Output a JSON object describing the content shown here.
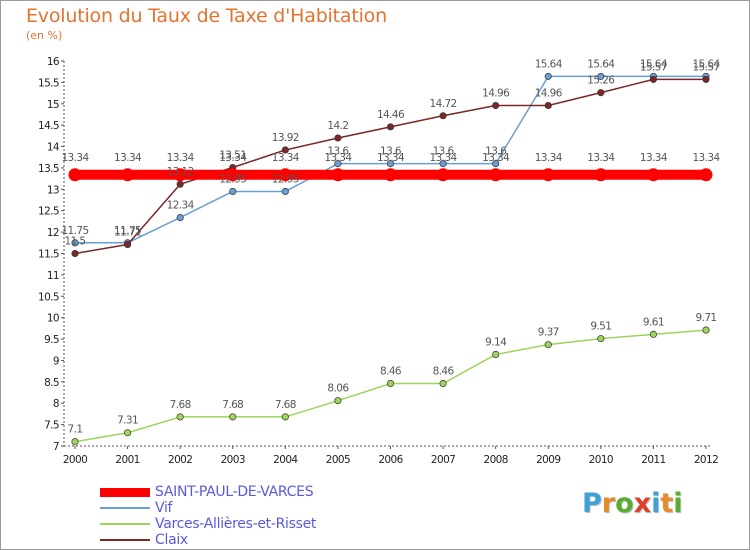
{
  "header": {
    "title": "Evolution du Taux de Taxe d'Habitation",
    "subtitle": "(en %)"
  },
  "logo": {
    "letters": [
      "P",
      "r",
      "o",
      "x",
      "i",
      "t",
      "i"
    ],
    "colors": [
      "#3fa0d8",
      "#e88a2a",
      "#5aab32",
      "#e03e2d",
      "#3fa0d8",
      "#e88a2a",
      "#5aab32"
    ]
  },
  "chart_data": {
    "type": "line",
    "title": "Evolution du Taux de Taxe d'Habitation",
    "ylabel": "(en %)",
    "xlabel": "",
    "x": [
      "2000",
      "2001",
      "2002",
      "2003",
      "2004",
      "2005",
      "2006",
      "2007",
      "2008",
      "2009",
      "2010",
      "2011",
      "2012"
    ],
    "ylim": [
      7,
      16
    ],
    "yticks": [
      "7",
      "7.5",
      "8",
      "8.5",
      "9",
      "9.5",
      "10",
      "10.5",
      "11",
      "11.5",
      "12",
      "12.5",
      "13",
      "13.5",
      "14",
      "14.5",
      "15",
      "15.5",
      "16"
    ],
    "grid": false,
    "legend_position": "bottom-left",
    "series": [
      {
        "name": "SAINT-PAUL-DE-VARCES",
        "color": "#ff0000",
        "values": [
          13.34,
          13.34,
          13.34,
          13.34,
          13.34,
          13.34,
          13.34,
          13.34,
          13.34,
          13.34,
          13.34,
          13.34,
          13.34
        ],
        "labels": [
          "13.34",
          "13.34",
          "13.34",
          "13.34",
          "13.34",
          "13.34",
          "13.34",
          "13.34",
          "13.34",
          "13.34",
          "13.34",
          "13.34",
          "13.34"
        ]
      },
      {
        "name": "Vif",
        "color": "#6a9fd4",
        "values": [
          11.75,
          11.75,
          12.34,
          12.95,
          12.95,
          13.6,
          13.6,
          13.6,
          13.6,
          15.64,
          15.64,
          15.64,
          15.64
        ],
        "labels": [
          "11.75",
          "11.75",
          "12.34",
          "12.95",
          "12.95",
          "13.6",
          "13.6",
          "13.6",
          "13.6",
          "15.64",
          "15.64",
          "15.64",
          "15.64"
        ]
      },
      {
        "name": "Varces-Allières-et-Risset",
        "color": "#9ed35c",
        "values": [
          7.1,
          7.31,
          7.68,
          7.68,
          7.68,
          8.06,
          8.46,
          8.46,
          9.14,
          9.37,
          9.51,
          9.61,
          9.71
        ],
        "labels": [
          "7.1",
          "7.31",
          "7.68",
          "7.68",
          "7.68",
          "8.06",
          "8.46",
          "8.46",
          "9.14",
          "9.37",
          "9.51",
          "9.61",
          "9.71"
        ]
      },
      {
        "name": "Claix",
        "color": "#7a2828",
        "values": [
          11.5,
          11.71,
          13.12,
          13.51,
          13.92,
          14.2,
          14.46,
          14.72,
          14.96,
          14.96,
          15.26,
          15.57,
          15.57
        ],
        "labels": [
          "11.5",
          "11.71",
          "13.12",
          "13.51",
          "13.92",
          "14.2",
          "14.46",
          "14.72",
          "14.96",
          "14.96",
          "15.26",
          "15.57",
          "15.57"
        ]
      }
    ]
  }
}
